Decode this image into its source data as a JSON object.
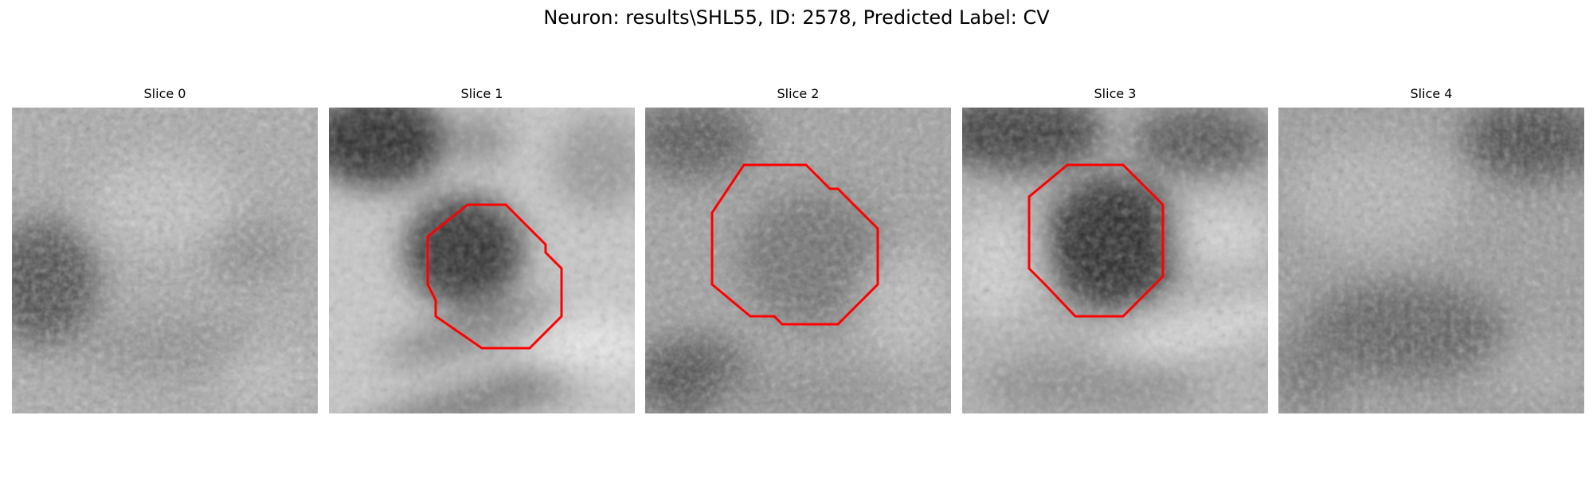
{
  "figure": {
    "title": "Neuron: results\\SHL55, ID: 2578, Predicted Label: CV"
  },
  "colors": {
    "background": "#ffffff",
    "contour": "#ff0000"
  },
  "panels": [
    {
      "title": "Slice 0",
      "image": "grayscale-patch-noise",
      "has_contour": false
    },
    {
      "title": "Slice 1",
      "image": "grayscale-patch-dark-blob",
      "has_contour": true
    },
    {
      "title": "Slice 2",
      "image": "grayscale-patch-gray-blob",
      "has_contour": true
    },
    {
      "title": "Slice 3",
      "image": "grayscale-patch-dark-blob",
      "has_contour": true
    },
    {
      "title": "Slice 4",
      "image": "grayscale-patch-noise",
      "has_contour": false
    }
  ]
}
